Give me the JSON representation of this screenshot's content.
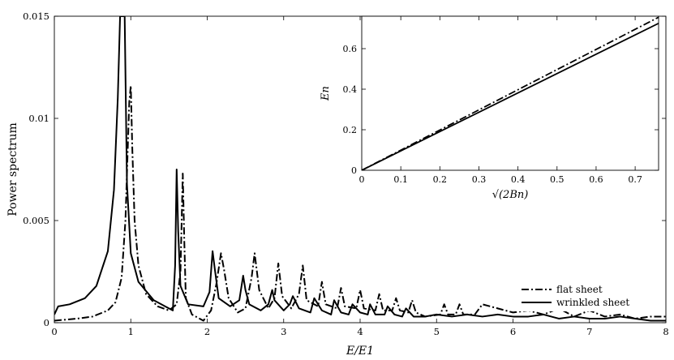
{
  "chart_data": [
    {
      "type": "line",
      "xlabel": "E/E1",
      "ylabel": "Power spectrum",
      "xlim": [
        0,
        8
      ],
      "ylim": [
        0,
        0.015
      ],
      "xticks": [
        "0",
        "1",
        "2",
        "3",
        "4",
        "5",
        "6",
        "7",
        "8"
      ],
      "yticks": [
        "0",
        "0.005",
        "0.01",
        "0.015"
      ],
      "grid": false,
      "legend_position": "bottom-right",
      "series": [
        {
          "name": "flat sheet",
          "style": "dash-dot",
          "x": [
            0.0,
            0.3,
            0.5,
            0.7,
            0.8,
            0.88,
            0.93,
            0.96,
            0.98,
            1.0,
            1.02,
            1.05,
            1.1,
            1.2,
            1.35,
            1.5,
            1.6,
            1.65,
            1.68,
            1.7,
            1.72,
            1.8,
            1.95,
            2.05,
            2.12,
            2.18,
            2.22,
            2.28,
            2.4,
            2.5,
            2.58,
            2.62,
            2.68,
            2.8,
            2.88,
            2.93,
            2.98,
            3.1,
            3.2,
            3.25,
            3.3,
            3.45,
            3.5,
            3.55,
            3.7,
            3.75,
            3.8,
            3.95,
            4.0,
            4.05,
            4.2,
            4.25,
            4.3,
            4.42,
            4.47,
            4.52,
            4.63,
            4.68,
            4.73,
            4.85,
            5.05,
            5.1,
            5.15,
            5.25,
            5.3,
            5.35,
            5.5,
            5.6,
            5.8,
            6.0,
            6.2,
            6.4,
            6.6,
            6.8,
            7.0,
            7.2,
            7.4,
            7.6,
            7.8,
            8.0
          ],
          "y": [
            0.0001,
            0.0002,
            0.0003,
            0.0006,
            0.001,
            0.0022,
            0.005,
            0.0085,
            0.0108,
            0.0116,
            0.0085,
            0.005,
            0.0028,
            0.0014,
            0.0008,
            0.0006,
            0.0009,
            0.0025,
            0.0073,
            0.004,
            0.0012,
            0.0004,
            0.0001,
            0.0006,
            0.0019,
            0.0034,
            0.0026,
            0.0012,
            0.0005,
            0.0007,
            0.0022,
            0.0034,
            0.0016,
            0.0007,
            0.0012,
            0.0029,
            0.0013,
            0.0007,
            0.0014,
            0.0028,
            0.0011,
            0.0008,
            0.002,
            0.0009,
            0.0007,
            0.0017,
            0.0008,
            0.0007,
            0.0016,
            0.0007,
            0.0006,
            0.0014,
            0.0006,
            0.0006,
            0.0012,
            0.0006,
            0.0005,
            0.0011,
            0.0005,
            0.0003,
            0.0004,
            0.0009,
            0.0004,
            0.0004,
            0.0009,
            0.0004,
            0.0004,
            0.0009,
            0.0007,
            0.0005,
            0.0006,
            0.0004,
            0.0007,
            0.0003,
            0.0006,
            0.0003,
            0.0004,
            0.0002,
            0.0003,
            0.0003
          ]
        },
        {
          "name": "wrinkled sheet",
          "style": "solid",
          "x": [
            0.0,
            0.05,
            0.2,
            0.4,
            0.55,
            0.7,
            0.78,
            0.83,
            0.86,
            0.88,
            0.9,
            0.92,
            0.95,
            1.0,
            1.1,
            1.3,
            1.45,
            1.55,
            1.58,
            1.6,
            1.62,
            1.65,
            1.75,
            1.95,
            2.03,
            2.07,
            2.1,
            2.15,
            2.3,
            2.42,
            2.47,
            2.5,
            2.55,
            2.7,
            2.8,
            2.85,
            2.88,
            3.0,
            3.08,
            3.12,
            3.2,
            3.35,
            3.4,
            3.5,
            3.62,
            3.66,
            3.75,
            3.85,
            3.9,
            4.0,
            4.1,
            4.13,
            4.2,
            4.32,
            4.36,
            4.45,
            4.55,
            4.6,
            4.7,
            4.85,
            5.0,
            5.2,
            5.4,
            5.6,
            5.8,
            6.0,
            6.2,
            6.4,
            6.6,
            6.8,
            7.0,
            7.2,
            7.4,
            7.6,
            7.8,
            8.0
          ],
          "y": [
            0.0004,
            0.0008,
            0.0009,
            0.0012,
            0.0018,
            0.0035,
            0.0065,
            0.011,
            0.015,
            0.015,
            0.015,
            0.015,
            0.0068,
            0.0034,
            0.002,
            0.0011,
            0.0008,
            0.0006,
            0.0028,
            0.0075,
            0.0045,
            0.0018,
            0.0009,
            0.0008,
            0.0015,
            0.0035,
            0.0026,
            0.0012,
            0.0008,
            0.0011,
            0.0023,
            0.0016,
            0.0009,
            0.0006,
            0.0009,
            0.0016,
            0.0011,
            0.0006,
            0.0009,
            0.0013,
            0.0007,
            0.0005,
            0.0012,
            0.0006,
            0.0004,
            0.0011,
            0.0005,
            0.0004,
            0.0009,
            0.0005,
            0.0004,
            0.0009,
            0.0004,
            0.0004,
            0.0008,
            0.0004,
            0.0003,
            0.0007,
            0.0003,
            0.0003,
            0.0004,
            0.0003,
            0.0004,
            0.0003,
            0.0004,
            0.0003,
            0.0003,
            0.0004,
            0.0002,
            0.0003,
            0.0002,
            0.0002,
            0.0003,
            0.0002,
            0.0001,
            0.0001
          ]
        }
      ]
    },
    {
      "type": "line",
      "xlabel": "√(2Bn)",
      "ylabel": "En",
      "xlim": [
        0,
        0.76
      ],
      "ylim": [
        0,
        0.76
      ],
      "xticks": [
        "0",
        "0.1",
        "0.2",
        "0.3",
        "0.4",
        "0.5",
        "0.6",
        "0.7"
      ],
      "yticks": [
        "0",
        "0.2",
        "0.4",
        "0.6"
      ],
      "grid": false,
      "series": [
        {
          "style": "dash-dot",
          "x": [
            0,
            0.76
          ],
          "y": [
            0,
            0.755
          ]
        },
        {
          "style": "solid",
          "x": [
            0,
            0.76
          ],
          "y": [
            0,
            0.725
          ]
        }
      ]
    }
  ]
}
